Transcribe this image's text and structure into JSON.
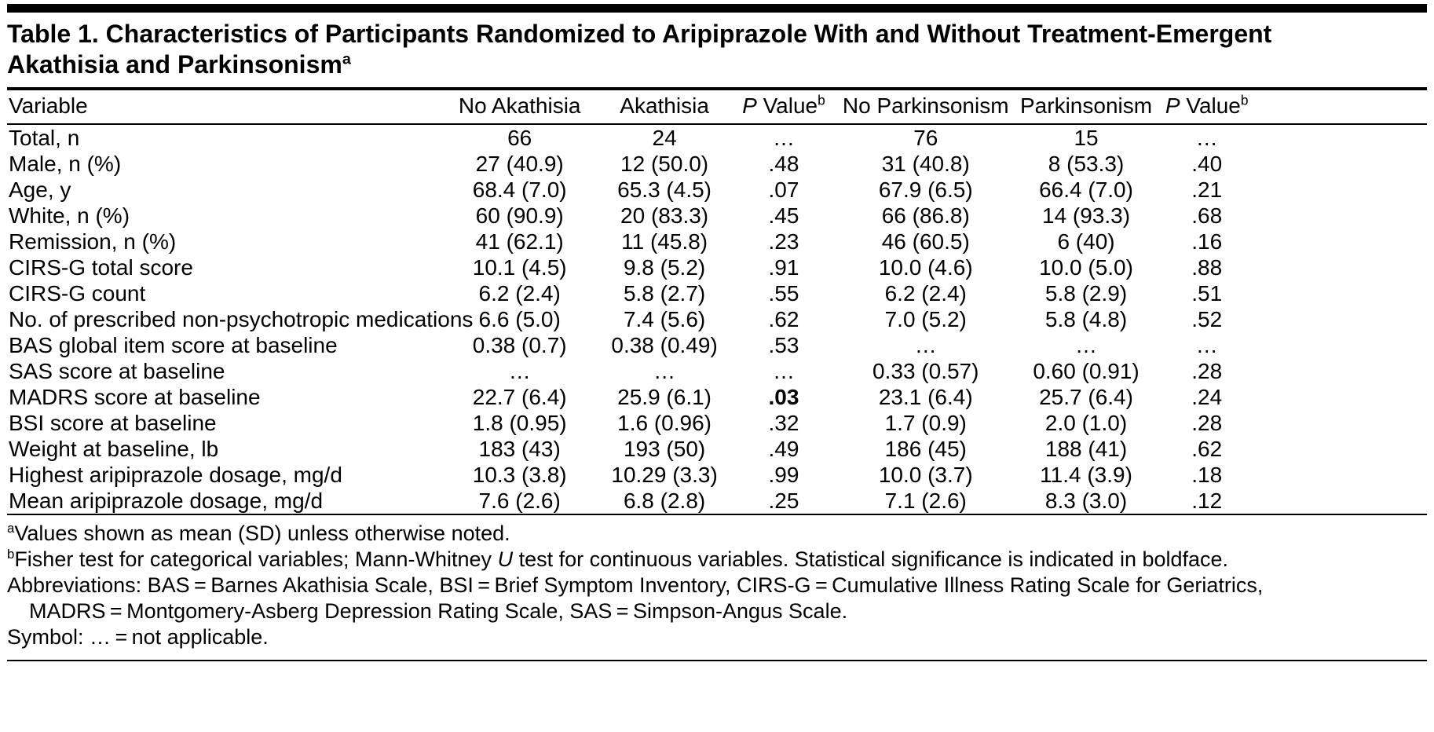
{
  "table": {
    "title_lines": [
      "Table 1. Characteristics of Participants Randomized to Aripiprazole With and Without Treatment-Emergent",
      "Akathisia and Parkinsonism"
    ],
    "title_sup": "a",
    "columns": [
      {
        "text": "Variable"
      },
      {
        "text": "No Akathisia"
      },
      {
        "text": "Akathisia"
      },
      {
        "prefix_italic": "P",
        "text": " Value",
        "sup": "b"
      },
      {
        "text": "No Parkinsonism"
      },
      {
        "text": "Parkinsonism"
      },
      {
        "prefix_italic": "P",
        "text": " Value",
        "sup": "b"
      }
    ],
    "rows": [
      {
        "cells": [
          "Total, n",
          "66",
          "24",
          "…",
          "76",
          "15",
          "…"
        ]
      },
      {
        "cells": [
          "Male, n (%)",
          "27 (40.9)",
          "12 (50.0)",
          ".48",
          "31 (40.8)",
          "8 (53.3)",
          ".40"
        ]
      },
      {
        "cells": [
          "Age, y",
          "68.4 (7.0)",
          "65.3 (4.5)",
          ".07",
          "67.9 (6.5)",
          "66.4 (7.0)",
          ".21"
        ]
      },
      {
        "cells": [
          "White, n (%)",
          "60 (90.9)",
          "20 (83.3)",
          ".45",
          "66 (86.8)",
          "14 (93.3)",
          ".68"
        ]
      },
      {
        "cells": [
          "Remission, n (%)",
          "41 (62.1)",
          "11 (45.8)",
          ".23",
          "46 (60.5)",
          "6 (40)",
          ".16"
        ]
      },
      {
        "cells": [
          "CIRS-G total score",
          "10.1 (4.5)",
          "9.8 (5.2)",
          ".91",
          "10.0 (4.6)",
          "10.0 (5.0)",
          ".88"
        ]
      },
      {
        "cells": [
          "CIRS-G count",
          "6.2 (2.4)",
          "5.8 (2.7)",
          ".55",
          "6.2 (2.4)",
          "5.8 (2.9)",
          ".51"
        ]
      },
      {
        "cells": [
          "No. of prescribed non-psychotropic medications",
          "6.6 (5.0)",
          "7.4 (5.6)",
          ".62",
          "7.0 (5.2)",
          "5.8 (4.8)",
          ".52"
        ]
      },
      {
        "cells": [
          "BAS global item score at baseline",
          "0.38 (0.7)",
          "0.38 (0.49)",
          ".53",
          "…",
          "…",
          "…"
        ]
      },
      {
        "cells": [
          "SAS score at baseline",
          "…",
          "…",
          "…",
          "0.33 (0.57)",
          "0.60 (0.91)",
          ".28"
        ]
      },
      {
        "cells": [
          "MADRS score at baseline",
          "22.7 (6.4)",
          "25.9 (6.1)",
          ".03",
          "23.1 (6.4)",
          "25.7 (6.4)",
          ".24"
        ],
        "bold_cols": [
          3
        ]
      },
      {
        "cells": [
          "BSI score at baseline",
          "1.8 (0.95)",
          "1.6 (0.96)",
          ".32",
          "1.7 (0.9)",
          "2.0 (1.0)",
          ".28"
        ]
      },
      {
        "cells": [
          "Weight at baseline, lb",
          "183 (43)",
          "193 (50)",
          ".49",
          "186 (45)",
          "188 (41)",
          ".62"
        ]
      },
      {
        "cells": [
          "Highest aripiprazole dosage, mg/d",
          "10.3 (3.8)",
          "10.29 (3.3)",
          ".99",
          "10.0 (3.7)",
          "11.4 (3.9)",
          ".18"
        ]
      },
      {
        "cells": [
          "Mean aripiprazole dosage, mg/d",
          "7.6 (2.6)",
          "6.8 (2.8)",
          ".25",
          "7.1 (2.6)",
          "8.3 (3.0)",
          ".12"
        ]
      }
    ],
    "footnotes": [
      {
        "sup": "a",
        "parts": [
          {
            "text": "Values shown as mean (SD) unless otherwise noted."
          }
        ]
      },
      {
        "sup": "b",
        "parts": [
          {
            "text": "Fisher test for categorical variables; Mann-Whitney "
          },
          {
            "text": "U",
            "italic": true
          },
          {
            "text": " test for continuous variables. Statistical significance is indicated in boldface."
          }
        ]
      },
      {
        "parts": [
          {
            "text": "Abbreviations: BAS = Barnes Akathisia Scale, BSI = Brief Symptom Inventory, CIRS-G = Cumulative Illness Rating Scale for Geriatrics,"
          }
        ]
      },
      {
        "indent": true,
        "parts": [
          {
            "text": "MADRS = Montgomery-Asberg Depression Rating Scale, SAS = Simpson-Angus Scale."
          }
        ]
      },
      {
        "parts": [
          {
            "text": "Symbol: … = not applicable."
          }
        ]
      }
    ]
  }
}
